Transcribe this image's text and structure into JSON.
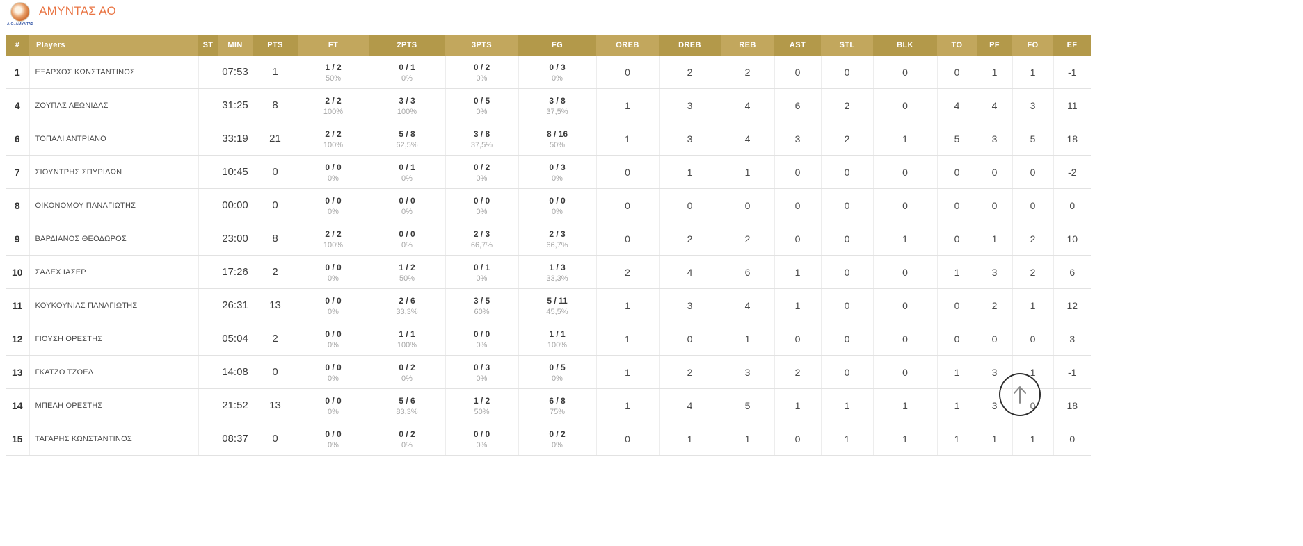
{
  "team": {
    "name": "ΑΜΥΝΤΑΣ ΑΟ",
    "logo_caption": "Α.Ο. ΑΜΥΝΤΑΣ"
  },
  "colors": {
    "title_orange": "#e97443",
    "header_gold_dark": "#b3994a",
    "header_gold_light": "#c2a75d"
  },
  "scroll_top": {
    "icon": "up-arrow"
  },
  "table": {
    "columns": [
      "#",
      "Players",
      "ST",
      "MIN",
      "PTS",
      "FT",
      "2PTS",
      "3PTS",
      "FG",
      "OREB",
      "DREB",
      "REB",
      "AST",
      "STL",
      "BLK",
      "TO",
      "PF",
      "FO",
      "EF"
    ],
    "rows": [
      {
        "num": "1",
        "name": "ΕΞΑΡΧΟΣ ΚΩΝΣΤΑΝΤΙΝΟΣ",
        "st": "",
        "min": "07:53",
        "pts": "1",
        "ft": "1 / 2",
        "ft_pct": "50%",
        "p2": "0 / 1",
        "p2_pct": "0%",
        "p3": "0 / 2",
        "p3_pct": "0%",
        "fg": "0 / 3",
        "fg_pct": "0%",
        "oreb": "0",
        "dreb": "2",
        "reb": "2",
        "ast": "0",
        "stl": "0",
        "blk": "0",
        "to": "0",
        "pf": "1",
        "fo": "1",
        "ef": "-1"
      },
      {
        "num": "4",
        "name": "ΖΟΥΠΑΣ ΛΕΩΝΙΔΑΣ",
        "st": "",
        "min": "31:25",
        "pts": "8",
        "ft": "2 / 2",
        "ft_pct": "100%",
        "p2": "3 / 3",
        "p2_pct": "100%",
        "p3": "0 / 5",
        "p3_pct": "0%",
        "fg": "3 / 8",
        "fg_pct": "37,5%",
        "oreb": "1",
        "dreb": "3",
        "reb": "4",
        "ast": "6",
        "stl": "2",
        "blk": "0",
        "to": "4",
        "pf": "4",
        "fo": "3",
        "ef": "11"
      },
      {
        "num": "6",
        "name": "ΤΟΠΑΛΙ ΑΝΤΡΙΑΝΟ",
        "st": "",
        "min": "33:19",
        "pts": "21",
        "ft": "2 / 2",
        "ft_pct": "100%",
        "p2": "5 / 8",
        "p2_pct": "62,5%",
        "p3": "3 / 8",
        "p3_pct": "37,5%",
        "fg": "8 / 16",
        "fg_pct": "50%",
        "oreb": "1",
        "dreb": "3",
        "reb": "4",
        "ast": "3",
        "stl": "2",
        "blk": "1",
        "to": "5",
        "pf": "3",
        "fo": "5",
        "ef": "18"
      },
      {
        "num": "7",
        "name": "ΣΙΟΥΝΤΡΗΣ ΣΠΥΡΙΔΩΝ",
        "st": "",
        "min": "10:45",
        "pts": "0",
        "ft": "0 / 0",
        "ft_pct": "0%",
        "p2": "0 / 1",
        "p2_pct": "0%",
        "p3": "0 / 2",
        "p3_pct": "0%",
        "fg": "0 / 3",
        "fg_pct": "0%",
        "oreb": "0",
        "dreb": "1",
        "reb": "1",
        "ast": "0",
        "stl": "0",
        "blk": "0",
        "to": "0",
        "pf": "0",
        "fo": "0",
        "ef": "-2"
      },
      {
        "num": "8",
        "name": "ΟΙΚΟΝΟΜΟΥ ΠΑΝΑΓΙΩΤΗΣ",
        "st": "",
        "min": "00:00",
        "pts": "0",
        "ft": "0 / 0",
        "ft_pct": "0%",
        "p2": "0 / 0",
        "p2_pct": "0%",
        "p3": "0 / 0",
        "p3_pct": "0%",
        "fg": "0 / 0",
        "fg_pct": "0%",
        "oreb": "0",
        "dreb": "0",
        "reb": "0",
        "ast": "0",
        "stl": "0",
        "blk": "0",
        "to": "0",
        "pf": "0",
        "fo": "0",
        "ef": "0"
      },
      {
        "num": "9",
        "name": "ΒΑΡΔΙΑΝΟΣ ΘΕΟΔΩΡΟΣ",
        "st": "",
        "min": "23:00",
        "pts": "8",
        "ft": "2 / 2",
        "ft_pct": "100%",
        "p2": "0 / 0",
        "p2_pct": "0%",
        "p3": "2 / 3",
        "p3_pct": "66,7%",
        "fg": "2 / 3",
        "fg_pct": "66,7%",
        "oreb": "0",
        "dreb": "2",
        "reb": "2",
        "ast": "0",
        "stl": "0",
        "blk": "1",
        "to": "0",
        "pf": "1",
        "fo": "2",
        "ef": "10"
      },
      {
        "num": "10",
        "name": "ΣΑΛΕΧ ΙΑΣΕΡ",
        "st": "",
        "min": "17:26",
        "pts": "2",
        "ft": "0 / 0",
        "ft_pct": "0%",
        "p2": "1 / 2",
        "p2_pct": "50%",
        "p3": "0 / 1",
        "p3_pct": "0%",
        "fg": "1 / 3",
        "fg_pct": "33,3%",
        "oreb": "2",
        "dreb": "4",
        "reb": "6",
        "ast": "1",
        "stl": "0",
        "blk": "0",
        "to": "1",
        "pf": "3",
        "fo": "2",
        "ef": "6"
      },
      {
        "num": "11",
        "name": "ΚΟΥΚΟΥΝΙΑΣ ΠΑΝΑΓΙΩΤΗΣ",
        "st": "",
        "min": "26:31",
        "pts": "13",
        "ft": "0 / 0",
        "ft_pct": "0%",
        "p2": "2 / 6",
        "p2_pct": "33,3%",
        "p3": "3 / 5",
        "p3_pct": "60%",
        "fg": "5 / 11",
        "fg_pct": "45,5%",
        "oreb": "1",
        "dreb": "3",
        "reb": "4",
        "ast": "1",
        "stl": "0",
        "blk": "0",
        "to": "0",
        "pf": "2",
        "fo": "1",
        "ef": "12"
      },
      {
        "num": "12",
        "name": "ΓΙΟΥΣΗ ΟΡΕΣΤΗΣ",
        "st": "",
        "min": "05:04",
        "pts": "2",
        "ft": "0 / 0",
        "ft_pct": "0%",
        "p2": "1 / 1",
        "p2_pct": "100%",
        "p3": "0 / 0",
        "p3_pct": "0%",
        "fg": "1 / 1",
        "fg_pct": "100%",
        "oreb": "1",
        "dreb": "0",
        "reb": "1",
        "ast": "0",
        "stl": "0",
        "blk": "0",
        "to": "0",
        "pf": "0",
        "fo": "0",
        "ef": "3"
      },
      {
        "num": "13",
        "name": "ΓΚΑΤΖΟ ΤΖΟΕΛ",
        "st": "",
        "min": "14:08",
        "pts": "0",
        "ft": "0 / 0",
        "ft_pct": "0%",
        "p2": "0 / 2",
        "p2_pct": "0%",
        "p3": "0 / 3",
        "p3_pct": "0%",
        "fg": "0 / 5",
        "fg_pct": "0%",
        "oreb": "1",
        "dreb": "2",
        "reb": "3",
        "ast": "2",
        "stl": "0",
        "blk": "0",
        "to": "1",
        "pf": "3",
        "fo": "1",
        "ef": "-1"
      },
      {
        "num": "14",
        "name": "ΜΠΕΛΗ ΟΡΕΣΤΗΣ",
        "st": "",
        "min": "21:52",
        "pts": "13",
        "ft": "0 / 0",
        "ft_pct": "0%",
        "p2": "5 / 6",
        "p2_pct": "83,3%",
        "p3": "1 / 2",
        "p3_pct": "50%",
        "fg": "6 / 8",
        "fg_pct": "75%",
        "oreb": "1",
        "dreb": "4",
        "reb": "5",
        "ast": "1",
        "stl": "1",
        "blk": "1",
        "to": "1",
        "pf": "3",
        "fo": "0",
        "ef": "18"
      },
      {
        "num": "15",
        "name": "ΤΑΓΑΡΗΣ ΚΩΝΣΤΑΝΤΙΝΟΣ",
        "st": "",
        "min": "08:37",
        "pts": "0",
        "ft": "0 / 0",
        "ft_pct": "0%",
        "p2": "0 / 2",
        "p2_pct": "0%",
        "p3": "0 / 0",
        "p3_pct": "0%",
        "fg": "0 / 2",
        "fg_pct": "0%",
        "oreb": "0",
        "dreb": "1",
        "reb": "1",
        "ast": "0",
        "stl": "1",
        "blk": "1",
        "to": "1",
        "pf": "1",
        "fo": "1",
        "ef": "0"
      }
    ]
  }
}
